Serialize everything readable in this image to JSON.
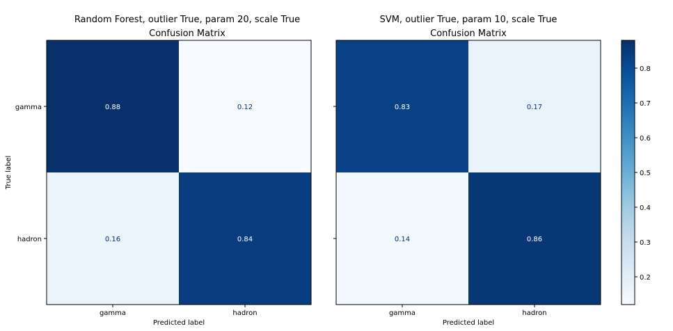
{
  "chart_data": [
    {
      "type": "heatmap",
      "title": "Random Forest, outlier True, param 20, scale True\nConfusion Matrix",
      "title_lines": [
        "Random Forest, outlier True, param 20, scale True",
        "Confusion Matrix"
      ],
      "xlabel": "Predicted label",
      "ylabel": "True label",
      "x_categories": [
        "gamma",
        "hadron"
      ],
      "y_categories": [
        "gamma",
        "hadron"
      ],
      "values": [
        [
          0.88,
          0.12
        ],
        [
          0.16,
          0.84
        ]
      ],
      "colormap": "Blues"
    },
    {
      "type": "heatmap",
      "title": "SVM, outlier True, param 10, scale True\nConfusion Matrix",
      "title_lines": [
        "SVM, outlier True, param 10, scale True",
        "Confusion Matrix"
      ],
      "xlabel": "Predicted label",
      "ylabel": "",
      "x_categories": [
        "gamma",
        "hadron"
      ],
      "y_categories": [],
      "values": [
        [
          0.83,
          0.17
        ],
        [
          0.14,
          0.86
        ]
      ],
      "colormap": "Blues"
    }
  ],
  "colorbar": {
    "ticks": [
      "0.2",
      "0.3",
      "0.4",
      "0.5",
      "0.6",
      "0.7",
      "0.8"
    ],
    "range": [
      0.12,
      0.88
    ],
    "colormap": "Blues",
    "low_color": "#f7fbff",
    "high_color": "#08306b"
  },
  "text_colors": {
    "dark_cell_text": "#ffffff",
    "light_cell_text": "#08306b",
    "axis_text": "#000000"
  }
}
